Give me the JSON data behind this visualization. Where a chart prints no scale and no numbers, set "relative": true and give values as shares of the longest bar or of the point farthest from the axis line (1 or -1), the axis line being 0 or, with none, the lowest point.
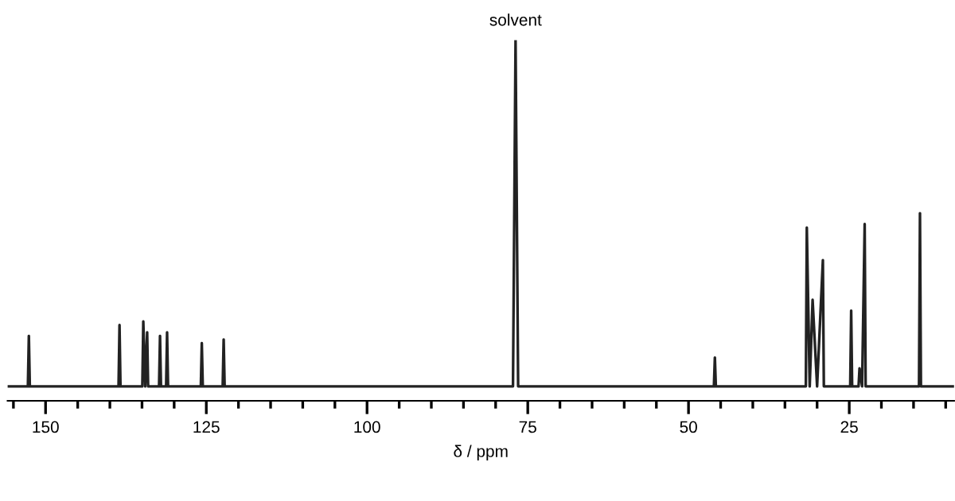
{
  "chart_data": {
    "type": "line",
    "relative": true,
    "xlabel": "δ / ppm",
    "annotations": [
      {
        "text": "solvent",
        "x": 76.9,
        "y": 1.0
      }
    ],
    "xlim": [
      155.9,
      8.7
    ],
    "xticks": [
      150,
      125,
      100,
      75,
      50,
      25
    ],
    "tick_labels": "x",
    "grid": false,
    "legend": false,
    "marker": "none",
    "line_style": "solid",
    "series": [
      {
        "color": "#222222",
        "x": [
          155.9,
          152.75,
          152.6,
          152.45,
          138.65,
          138.5,
          138.35,
          134.95,
          134.8,
          134.5,
          134.2,
          134.05,
          132.35,
          132.2,
          132.05,
          131.25,
          131.1,
          130.95,
          125.85,
          125.7,
          125.55,
          122.45,
          122.3,
          122.15,
          77.3,
          76.9,
          76.5,
          46.05,
          45.9,
          45.75,
          31.75,
          31.6,
          31.15,
          30.7,
          30.0,
          29.1,
          28.95,
          24.85,
          24.7,
          24.55,
          23.55,
          23.4,
          23.0,
          22.6,
          22.45,
          14.15,
          14.0,
          13.85,
          8.7
        ],
        "values": [
          0.04,
          0.04,
          0.18,
          0.04,
          0.04,
          0.21,
          0.04,
          0.04,
          0.22,
          0.04,
          0.19,
          0.04,
          0.04,
          0.18,
          0.04,
          0.04,
          0.19,
          0.04,
          0.04,
          0.16,
          0.04,
          0.04,
          0.17,
          0.04,
          0.04,
          1.0,
          0.04,
          0.04,
          0.12,
          0.04,
          0.04,
          0.48,
          0.04,
          0.28,
          0.04,
          0.39,
          0.04,
          0.04,
          0.25,
          0.04,
          0.04,
          0.09,
          0.04,
          0.49,
          0.04,
          0.04,
          0.52,
          0.04,
          0.04
        ]
      }
    ]
  }
}
